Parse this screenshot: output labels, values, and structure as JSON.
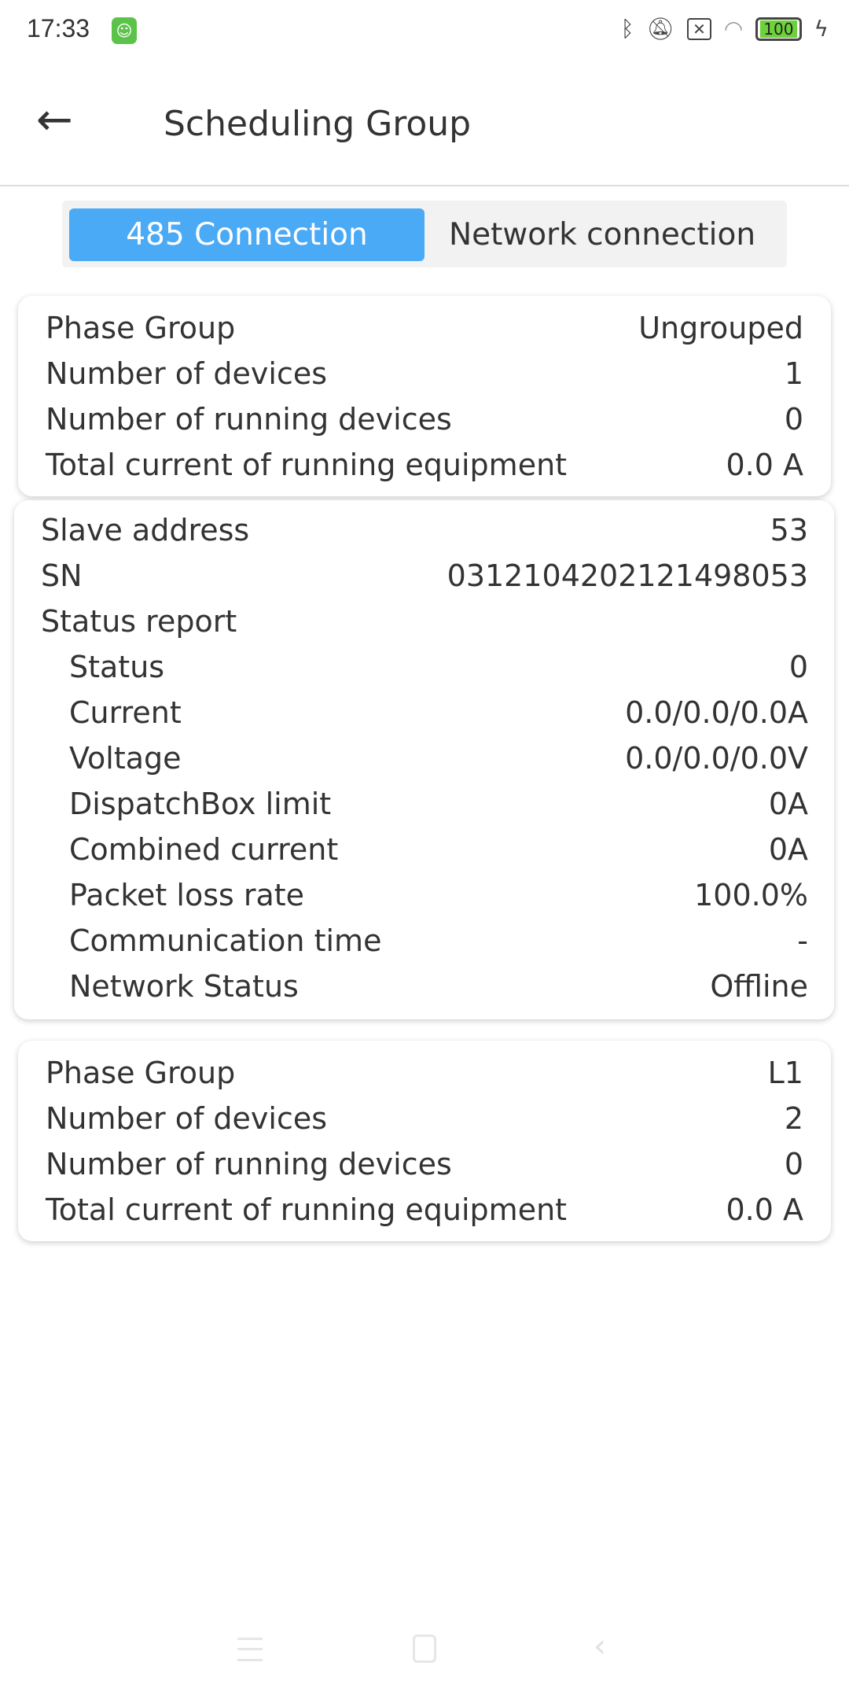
{
  "status_bar": {
    "time": "17:33",
    "battery": "100",
    "icons": [
      "bluetooth-icon",
      "muted-bell-icon",
      "no-sim-icon",
      "wifi-icon",
      "battery-icon",
      "charging-icon"
    ]
  },
  "header": {
    "title": "Scheduling Group"
  },
  "tabs": [
    {
      "label": "485 Connection",
      "active": true
    },
    {
      "label": "Network connection",
      "active": false
    }
  ],
  "group1": {
    "rows": [
      {
        "k": "Phase Group",
        "v": "Ungrouped"
      },
      {
        "k": "Number of devices",
        "v": "1"
      },
      {
        "k": "Number of running devices",
        "v": "0"
      },
      {
        "k": "Total current of running equipment",
        "v": "0.0 A"
      }
    ]
  },
  "device": {
    "rows": [
      {
        "k": "Slave address",
        "v": "53"
      },
      {
        "k": "SN",
        "v": "031210420212149805​3"
      },
      {
        "k": "Status report",
        "v": ""
      }
    ],
    "report": [
      {
        "k": "Status",
        "v": "0"
      },
      {
        "k": "Current",
        "v": "0.0/0.0/0.0A"
      },
      {
        "k": "Voltage",
        "v": "0.0/0.0/0.0V"
      },
      {
        "k": "DispatchBox limit",
        "v": "0A"
      },
      {
        "k": "Combined current",
        "v": "0A"
      },
      {
        "k": "Packet loss rate",
        "v": "100.0%"
      },
      {
        "k": "Communication time",
        "v": "-"
      },
      {
        "k": "Network Status",
        "v": "Offline"
      }
    ]
  },
  "group2": {
    "rows": [
      {
        "k": "Phase Group",
        "v": "L1"
      },
      {
        "k": "Number of devices",
        "v": "2"
      },
      {
        "k": "Number of running devices",
        "v": "0"
      },
      {
        "k": "Total current of running equipment",
        "v": "0.0 A"
      }
    ]
  },
  "accent": "#4aaaf6"
}
